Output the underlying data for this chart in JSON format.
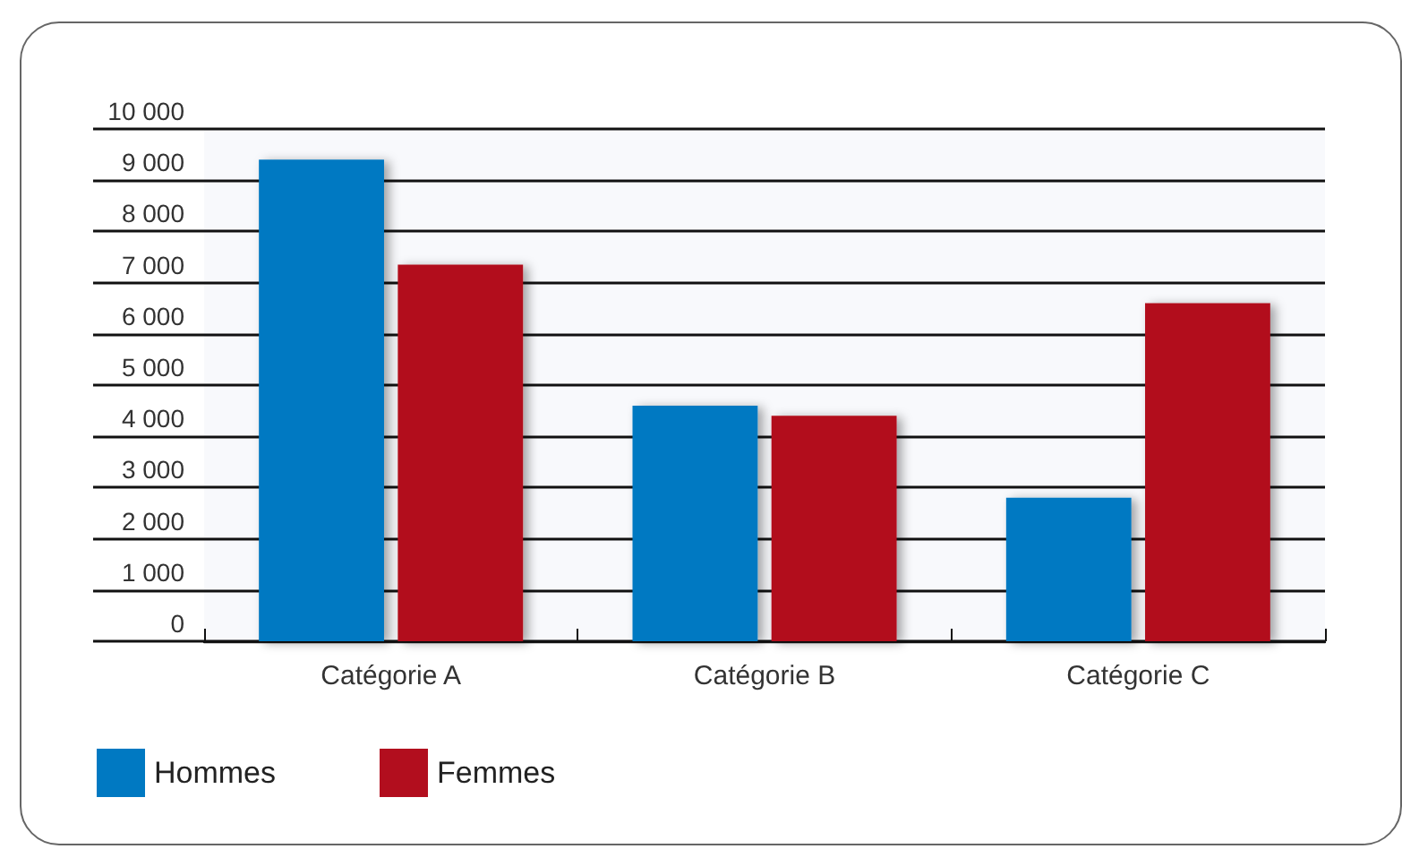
{
  "chart_data": {
    "type": "bar",
    "categories": [
      "Catégorie A",
      "Catégorie B",
      "Catégorie C"
    ],
    "series": [
      {
        "name": "Hommes",
        "color": "#0079c2",
        "values": [
          9400,
          4600,
          2800
        ]
      },
      {
        "name": "Femmes",
        "color": "#b20e1e",
        "values": [
          7350,
          4400,
          6600
        ]
      }
    ],
    "ylim": [
      0,
      10000
    ],
    "yticks": [
      0,
      {
        "value": 1000,
        "label": "1 000"
      },
      {
        "value": 2000,
        "label": "2 000"
      },
      {
        "value": 3000,
        "label": "3 000"
      },
      {
        "value": 4000,
        "label": "4 000"
      },
      {
        "value": 5000,
        "label": "5 000"
      },
      {
        "value": 6000,
        "label": "6 000"
      },
      {
        "value": 7000,
        "label": "7 000"
      },
      {
        "value": 8000,
        "label": "8 000"
      },
      {
        "value": 9000,
        "label": "9 000"
      },
      {
        "value": 10000,
        "label": "10 000"
      }
    ],
    "grid": "y",
    "legend": "bottom left"
  }
}
